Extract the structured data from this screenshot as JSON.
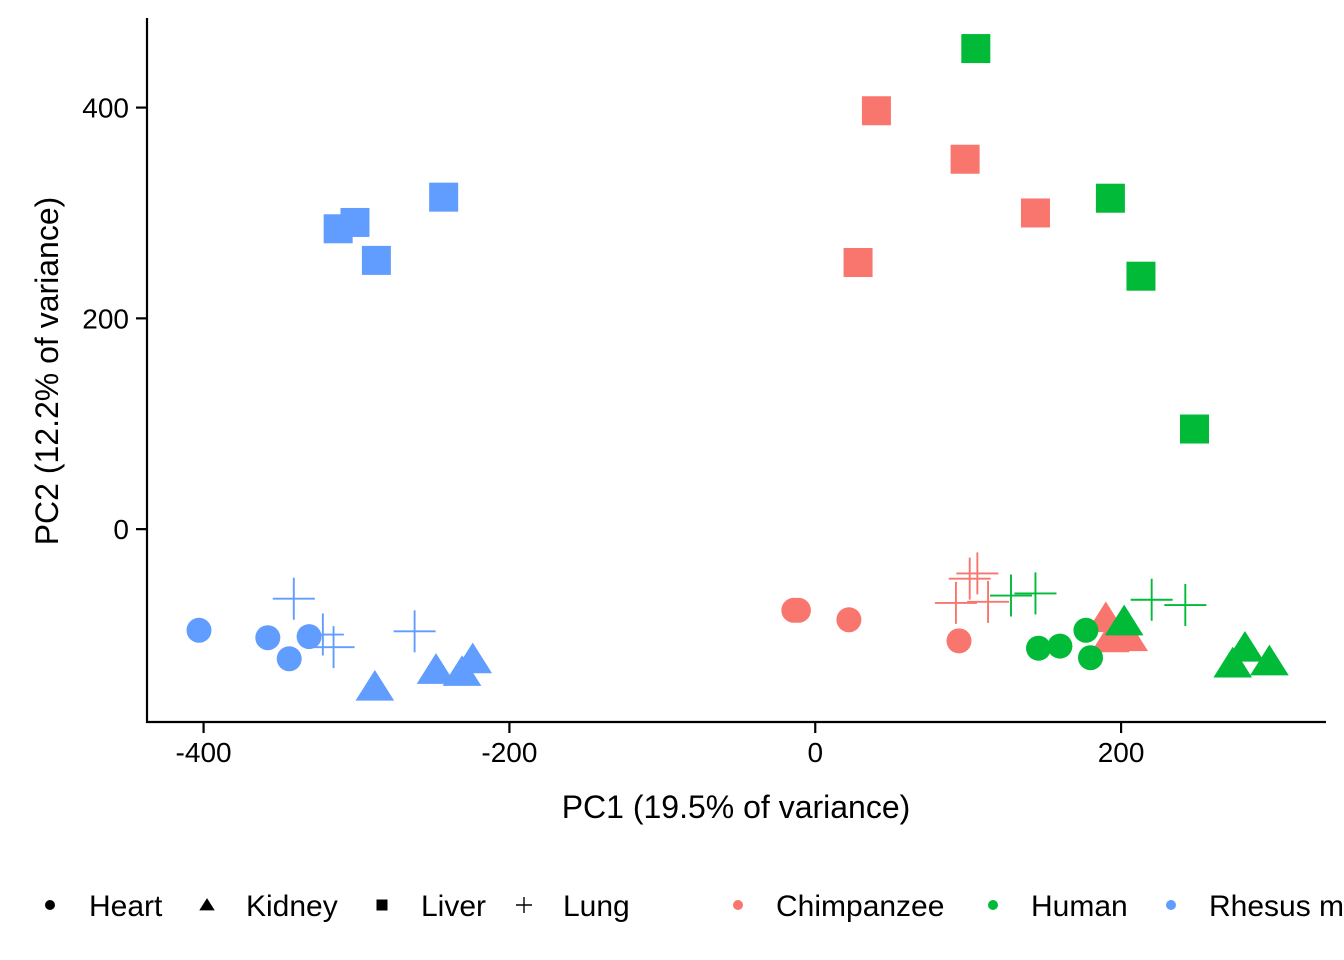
{
  "chart_data": {
    "type": "scatter",
    "xlabel": "PC1 (19.5% of variance)",
    "ylabel": "PC2 (12.2% of variance)",
    "xlim": [
      -437,
      334
    ],
    "ylim": [
      -183,
      485
    ],
    "x_ticks": [
      -400,
      -200,
      0,
      200
    ],
    "y_ticks": [
      0,
      200,
      400
    ],
    "grid": false,
    "legend_position": "bottom",
    "shape_legend": [
      {
        "label": "Heart",
        "shape": "circle"
      },
      {
        "label": "Kidney",
        "shape": "triangle"
      },
      {
        "label": "Liver",
        "shape": "square"
      },
      {
        "label": "Lung",
        "shape": "plus"
      }
    ],
    "color_legend": [
      {
        "label": "Chimpanzee",
        "color": "#F8766D"
      },
      {
        "label": "Human",
        "color": "#00BA38"
      },
      {
        "label": "Rhesus m",
        "color": "#619CFF"
      }
    ],
    "points": [
      {
        "x": -403,
        "y": -96,
        "tissue": "Heart",
        "species": "Rhesus m"
      },
      {
        "x": -358,
        "y": -103,
        "tissue": "Heart",
        "species": "Rhesus m"
      },
      {
        "x": -344,
        "y": -123,
        "tissue": "Heart",
        "species": "Rhesus m"
      },
      {
        "x": -331,
        "y": -102,
        "tissue": "Heart",
        "species": "Rhesus m"
      },
      {
        "x": -288,
        "y": -150,
        "tissue": "Kidney",
        "species": "Rhesus m"
      },
      {
        "x": -248,
        "y": -134,
        "tissue": "Kidney",
        "species": "Rhesus m"
      },
      {
        "x": -231,
        "y": -136,
        "tissue": "Kidney",
        "species": "Rhesus m"
      },
      {
        "x": -224,
        "y": -124,
        "tissue": "Kidney",
        "species": "Rhesus m"
      },
      {
        "x": -312,
        "y": 285,
        "tissue": "Liver",
        "species": "Rhesus m"
      },
      {
        "x": -301,
        "y": 291,
        "tissue": "Liver",
        "species": "Rhesus m"
      },
      {
        "x": -287,
        "y": 255,
        "tissue": "Liver",
        "species": "Rhesus m"
      },
      {
        "x": -243,
        "y": 315,
        "tissue": "Liver",
        "species": "Rhesus m"
      },
      {
        "x": -341,
        "y": -66,
        "tissue": "Lung",
        "species": "Rhesus m"
      },
      {
        "x": -322,
        "y": -100,
        "tissue": "Lung",
        "species": "Rhesus m"
      },
      {
        "x": -315,
        "y": -112,
        "tissue": "Lung",
        "species": "Rhesus m"
      },
      {
        "x": -262,
        "y": -97,
        "tissue": "Lung",
        "species": "Rhesus m"
      },
      {
        "x": -14,
        "y": -77,
        "tissue": "Heart",
        "species": "Chimpanzee"
      },
      {
        "x": -11,
        "y": -77,
        "tissue": "Heart",
        "species": "Chimpanzee"
      },
      {
        "x": 22,
        "y": -86,
        "tissue": "Heart",
        "species": "Chimpanzee"
      },
      {
        "x": 94,
        "y": -106,
        "tissue": "Heart",
        "species": "Chimpanzee"
      },
      {
        "x": 190,
        "y": -85,
        "tissue": "Kidney",
        "species": "Chimpanzee"
      },
      {
        "x": 193,
        "y": -104,
        "tissue": "Kidney",
        "species": "Chimpanzee"
      },
      {
        "x": 200,
        "y": -99,
        "tissue": "Kidney",
        "species": "Chimpanzee"
      },
      {
        "x": 205,
        "y": -103,
        "tissue": "Kidney",
        "species": "Chimpanzee"
      },
      {
        "x": 28,
        "y": 253,
        "tissue": "Liver",
        "species": "Chimpanzee"
      },
      {
        "x": 40,
        "y": 397,
        "tissue": "Liver",
        "species": "Chimpanzee"
      },
      {
        "x": 98,
        "y": 351,
        "tissue": "Liver",
        "species": "Chimpanzee"
      },
      {
        "x": 144,
        "y": 300,
        "tissue": "Liver",
        "species": "Chimpanzee"
      },
      {
        "x": 92,
        "y": -70,
        "tissue": "Lung",
        "species": "Chimpanzee"
      },
      {
        "x": 101,
        "y": -47,
        "tissue": "Lung",
        "species": "Chimpanzee"
      },
      {
        "x": 106,
        "y": -42,
        "tissue": "Lung",
        "species": "Chimpanzee"
      },
      {
        "x": 113,
        "y": -69,
        "tissue": "Lung",
        "species": "Chimpanzee"
      },
      {
        "x": 146,
        "y": -113,
        "tissue": "Heart",
        "species": "Human"
      },
      {
        "x": 160,
        "y": -111,
        "tissue": "Heart",
        "species": "Human"
      },
      {
        "x": 177,
        "y": -96,
        "tissue": "Heart",
        "species": "Human"
      },
      {
        "x": 180,
        "y": -122,
        "tissue": "Heart",
        "species": "Human"
      },
      {
        "x": 202,
        "y": -88,
        "tissue": "Kidney",
        "species": "Human"
      },
      {
        "x": 273,
        "y": -128,
        "tissue": "Kidney",
        "species": "Human"
      },
      {
        "x": 281,
        "y": -113,
        "tissue": "Kidney",
        "species": "Human"
      },
      {
        "x": 297,
        "y": -126,
        "tissue": "Kidney",
        "species": "Human"
      },
      {
        "x": 105,
        "y": 456,
        "tissue": "Liver",
        "species": "Human"
      },
      {
        "x": 193,
        "y": 314,
        "tissue": "Liver",
        "species": "Human"
      },
      {
        "x": 213,
        "y": 240,
        "tissue": "Liver",
        "species": "Human"
      },
      {
        "x": 248,
        "y": 95,
        "tissue": "Liver",
        "species": "Human"
      },
      {
        "x": 128,
        "y": -63,
        "tissue": "Lung",
        "species": "Human"
      },
      {
        "x": 144,
        "y": -61,
        "tissue": "Lung",
        "species": "Human"
      },
      {
        "x": 220,
        "y": -67,
        "tissue": "Lung",
        "species": "Human"
      },
      {
        "x": 242,
        "y": -72,
        "tissue": "Lung",
        "species": "Human"
      }
    ]
  }
}
